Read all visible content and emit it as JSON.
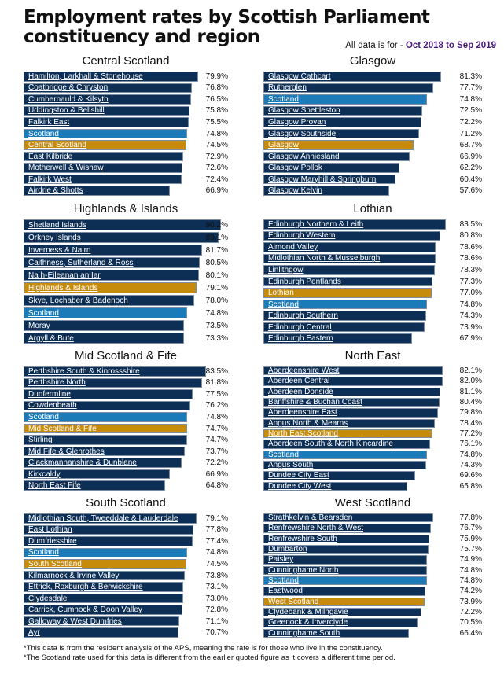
{
  "title": "Employment rates by Scottish Parliament constituency and region",
  "period_prefix": "All data is for - ",
  "period": "Oct 2018 to Sep 2019",
  "colors": {
    "constituency": "#0d2f55",
    "scotland": "#1b7bb9",
    "region": "#c78b0c"
  },
  "notes": [
    "*This data is from the resident analysis of the APS, meaning the rate is for those who live in the constituency.",
    "*The Scotland rate used for this data is different from the earlier quoted figure as it covers a different time period."
  ],
  "chart_data": [
    {
      "type": "bar",
      "title": "Central Scotland",
      "unit": "%",
      "rows": [
        {
          "label": "Hamilton, Larkhall & Stonehouse",
          "value": 79.9,
          "kind": "constituency"
        },
        {
          "label": "Coatbridge & Chryston",
          "value": 76.8,
          "kind": "constituency"
        },
        {
          "label": "Cumbernauld & Kilsyth",
          "value": 76.5,
          "kind": "constituency"
        },
        {
          "label": "Uddingston & Bellshill",
          "value": 75.8,
          "kind": "constituency"
        },
        {
          "label": "Falkirk East",
          "value": 75.5,
          "kind": "constituency"
        },
        {
          "label": "Scotland",
          "value": 74.8,
          "kind": "scotland"
        },
        {
          "label": "Central Scotland",
          "value": 74.5,
          "kind": "region"
        },
        {
          "label": "East Kilbride",
          "value": 72.9,
          "kind": "constituency"
        },
        {
          "label": "Motherwell & Wishaw",
          "value": 72.6,
          "kind": "constituency"
        },
        {
          "label": "Falkirk West",
          "value": 72.4,
          "kind": "constituency"
        },
        {
          "label": "Airdrie & Shotts",
          "value": 66.9,
          "kind": "constituency"
        }
      ]
    },
    {
      "type": "bar",
      "title": "Glasgow",
      "unit": "%",
      "rows": [
        {
          "label": "Glasgow Cathcart",
          "value": 81.3,
          "kind": "constituency"
        },
        {
          "label": "Rutherglen",
          "value": 77.7,
          "kind": "constituency"
        },
        {
          "label": "Scotland",
          "value": 74.8,
          "kind": "scotland"
        },
        {
          "label": "Glasgow Shettleston",
          "value": 72.5,
          "kind": "constituency"
        },
        {
          "label": "Glasgow Provan",
          "value": 72.2,
          "kind": "constituency"
        },
        {
          "label": "Glasgow Southside",
          "value": 71.2,
          "kind": "constituency"
        },
        {
          "label": "Glasgow",
          "value": 68.7,
          "kind": "region"
        },
        {
          "label": "Glasgow Anniesland",
          "value": 66.9,
          "kind": "constituency"
        },
        {
          "label": "Glasgow Pollok",
          "value": 62.2,
          "kind": "constituency"
        },
        {
          "label": "Glasgow Maryhill & Springburn",
          "value": 60.4,
          "kind": "constituency"
        },
        {
          "label": "Glasgow Kelvin",
          "value": 57.6,
          "kind": "constituency"
        }
      ]
    },
    {
      "type": "bar",
      "title": "Highlands & Islands",
      "unit": "%",
      "rows": [
        {
          "label": "Shetland Islands",
          "value": 90.2,
          "kind": "constituency"
        },
        {
          "label": "Orkney Islands",
          "value": 89.1,
          "kind": "constituency"
        },
        {
          "label": "Inverness & Nairn",
          "value": 81.7,
          "kind": "constituency"
        },
        {
          "label": "Caithness, Sutherland & Ross",
          "value": 80.5,
          "kind": "constituency"
        },
        {
          "label": "Na h-Eileanan an Iar",
          "value": 80.1,
          "kind": "constituency"
        },
        {
          "label": "Highlands & Islands",
          "value": 79.1,
          "kind": "region"
        },
        {
          "label": "Skye, Lochaber & Badenoch",
          "value": 78.0,
          "kind": "constituency"
        },
        {
          "label": "Scotland",
          "value": 74.8,
          "kind": "scotland"
        },
        {
          "label": "Moray",
          "value": 73.5,
          "kind": "constituency"
        },
        {
          "label": "Argyll & Bute",
          "value": 73.3,
          "kind": "constituency"
        }
      ]
    },
    {
      "type": "bar",
      "title": "Lothian",
      "unit": "%",
      "rows": [
        {
          "label": "Edinburgh Northern & Leith",
          "value": 83.5,
          "kind": "constituency"
        },
        {
          "label": "Edinburgh Western",
          "value": 80.8,
          "kind": "constituency"
        },
        {
          "label": "Almond Valley",
          "value": 78.6,
          "kind": "constituency"
        },
        {
          "label": "Midlothian North & Musselburgh",
          "value": 78.6,
          "kind": "constituency"
        },
        {
          "label": "Linlithgow",
          "value": 78.3,
          "kind": "constituency"
        },
        {
          "label": "Edinburgh Pentlands",
          "value": 77.3,
          "kind": "constituency"
        },
        {
          "label": "Lothian",
          "value": 77.0,
          "kind": "region"
        },
        {
          "label": "Scotland",
          "value": 74.8,
          "kind": "scotland"
        },
        {
          "label": "Edinburgh Southern",
          "value": 74.3,
          "kind": "constituency"
        },
        {
          "label": "Edinburgh Central",
          "value": 73.9,
          "kind": "constituency"
        },
        {
          "label": "Edinburgh Eastern",
          "value": 67.9,
          "kind": "constituency"
        }
      ]
    },
    {
      "type": "bar",
      "title": "Mid Scotland & Fife",
      "unit": "%",
      "rows": [
        {
          "label": "Perthshire South & Kinrossshire",
          "value": 83.5,
          "kind": "constituency"
        },
        {
          "label": "Perthshire North",
          "value": 81.8,
          "kind": "constituency"
        },
        {
          "label": "Dunfermline",
          "value": 77.5,
          "kind": "constituency"
        },
        {
          "label": "Cowdenbeath",
          "value": 76.2,
          "kind": "constituency"
        },
        {
          "label": "Scotland",
          "value": 74.8,
          "kind": "scotland"
        },
        {
          "label": "Mid Scotland & Fife",
          "value": 74.7,
          "kind": "region"
        },
        {
          "label": "Stirling",
          "value": 74.7,
          "kind": "constituency"
        },
        {
          "label": "Mid Fife & Glenrothes",
          "value": 73.7,
          "kind": "constituency"
        },
        {
          "label": "Clackmannanshire & Dunblane",
          "value": 72.2,
          "kind": "constituency"
        },
        {
          "label": "Kirkcaldy",
          "value": 66.9,
          "kind": "constituency"
        },
        {
          "label": "North East Fife",
          "value": 64.8,
          "kind": "constituency"
        }
      ]
    },
    {
      "type": "bar",
      "title": "North East",
      "unit": "%",
      "rows": [
        {
          "label": "Aberdeenshire West",
          "value": 82.1,
          "kind": "constituency"
        },
        {
          "label": "Aberdeen Central",
          "value": 82.0,
          "kind": "constituency"
        },
        {
          "label": "Aberdeen Donside",
          "value": 81.1,
          "kind": "constituency"
        },
        {
          "label": "Banffshire & Buchan Coast",
          "value": 80.4,
          "kind": "constituency"
        },
        {
          "label": "Aberdeenshire East",
          "value": 79.8,
          "kind": "constituency"
        },
        {
          "label": "Angus North & Mearns",
          "value": 78.4,
          "kind": "constituency"
        },
        {
          "label": "North East Scotland",
          "value": 77.2,
          "kind": "region"
        },
        {
          "label": "Aberdeen South & North Kincardine",
          "value": 76.1,
          "kind": "constituency"
        },
        {
          "label": "Scotland",
          "value": 74.8,
          "kind": "scotland"
        },
        {
          "label": "Angus South",
          "value": 74.3,
          "kind": "constituency"
        },
        {
          "label": "Dundee City East",
          "value": 69.6,
          "kind": "constituency"
        },
        {
          "label": "Dundee City West",
          "value": 65.8,
          "kind": "constituency"
        }
      ]
    },
    {
      "type": "bar",
      "title": "South Scotland",
      "unit": "%",
      "rows": [
        {
          "label": "Midlothian South, Tweeddale & Lauderdale",
          "value": 79.1,
          "kind": "constituency"
        },
        {
          "label": "East Lothian",
          "value": 77.8,
          "kind": "constituency"
        },
        {
          "label": "Dumfriesshire",
          "value": 77.4,
          "kind": "constituency"
        },
        {
          "label": "Scotland",
          "value": 74.8,
          "kind": "scotland"
        },
        {
          "label": "South Scotland",
          "value": 74.5,
          "kind": "region"
        },
        {
          "label": "Kilmarnock & Irvine Valley",
          "value": 73.8,
          "kind": "constituency"
        },
        {
          "label": "Ettrick, Roxburgh & Berwickshire",
          "value": 73.1,
          "kind": "constituency"
        },
        {
          "label": "Clydesdale",
          "value": 73.0,
          "kind": "constituency"
        },
        {
          "label": "Carrick, Cumnock & Doon Valley",
          "value": 72.8,
          "kind": "constituency"
        },
        {
          "label": "Galloway & West Dumfries",
          "value": 71.1,
          "kind": "constituency"
        },
        {
          "label": "Ayr",
          "value": 70.7,
          "kind": "constituency"
        }
      ]
    },
    {
      "type": "bar",
      "title": "West Scotland",
      "unit": "%",
      "rows": [
        {
          "label": "Strathkelvin & Bearsden",
          "value": 77.8,
          "kind": "constituency"
        },
        {
          "label": "Renfrewshire North & West",
          "value": 76.7,
          "kind": "constituency"
        },
        {
          "label": "Renfrewshire South",
          "value": 75.9,
          "kind": "constituency"
        },
        {
          "label": "Dumbarton",
          "value": 75.7,
          "kind": "constituency"
        },
        {
          "label": "Paisley",
          "value": 74.9,
          "kind": "constituency"
        },
        {
          "label": "Cunninghame North",
          "value": 74.8,
          "kind": "constituency"
        },
        {
          "label": "Scotland",
          "value": 74.8,
          "kind": "scotland"
        },
        {
          "label": "Eastwood",
          "value": 74.2,
          "kind": "constituency"
        },
        {
          "label": "West Scotland",
          "value": 73.9,
          "kind": "region"
        },
        {
          "label": "Clydebank & Milngavie",
          "value": 72.2,
          "kind": "constituency"
        },
        {
          "label": "Greenock & Inverclyde",
          "value": 70.5,
          "kind": "constituency"
        },
        {
          "label": "Cunninghame South",
          "value": 66.4,
          "kind": "constituency"
        }
      ]
    }
  ]
}
